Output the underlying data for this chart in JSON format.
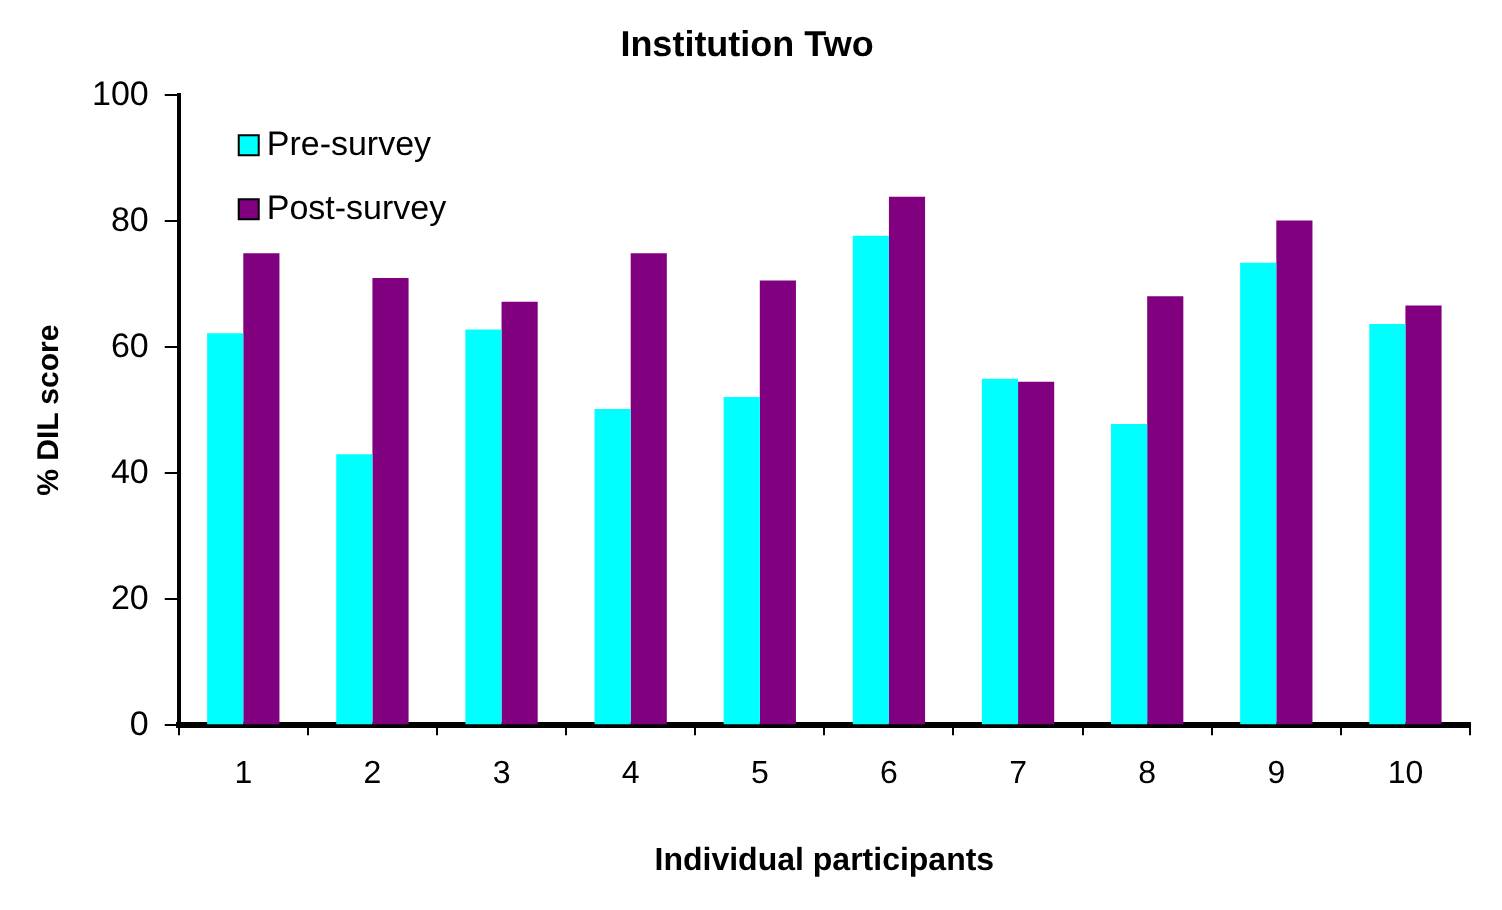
{
  "chart_data": {
    "type": "bar",
    "title": "Institution Two",
    "xlabel": "Individual participants",
    "ylabel": "% DIL score",
    "categories": [
      "1",
      "2",
      "3",
      "4",
      "5",
      "6",
      "7",
      "8",
      "9",
      "10"
    ],
    "series": [
      {
        "name": "Pre-survey",
        "color": "#00ffff",
        "values": [
          62.2,
          43.0,
          62.8,
          50.2,
          52.1,
          77.7,
          55.0,
          47.8,
          73.4,
          63.7
        ]
      },
      {
        "name": "Post-survey",
        "color": "#800080",
        "values": [
          74.9,
          71.0,
          67.2,
          74.9,
          70.6,
          83.9,
          54.5,
          68.1,
          80.1,
          66.6
        ]
      }
    ],
    "ylim": [
      0,
      100
    ],
    "yticks": [
      0,
      20,
      40,
      60,
      80,
      100
    ],
    "grid": false,
    "legend": "top left"
  }
}
